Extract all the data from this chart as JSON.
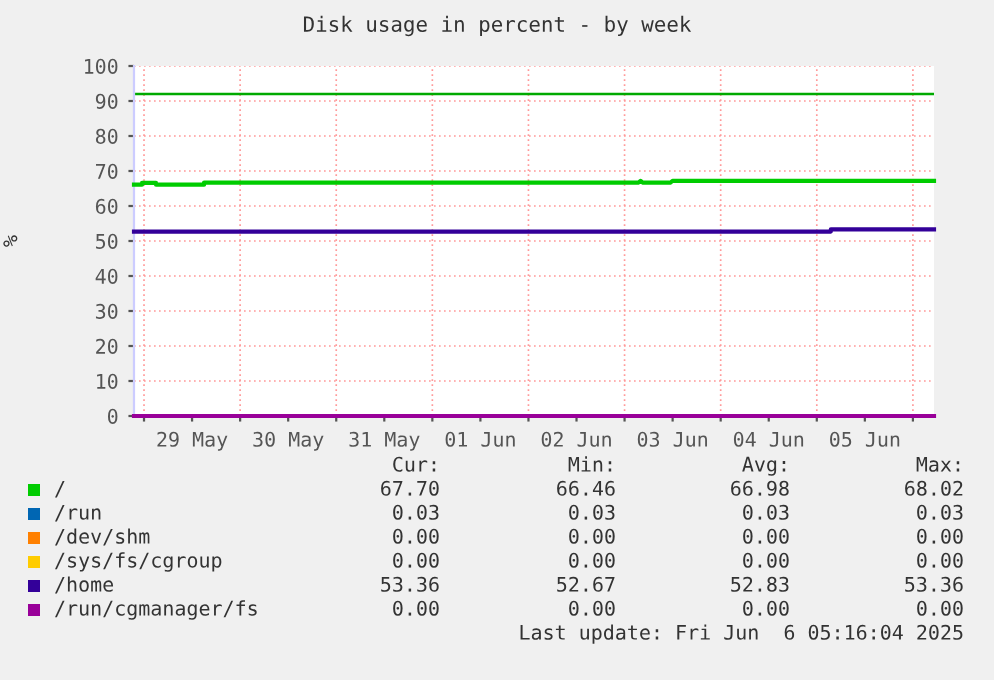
{
  "chart_data": {
    "type": "line",
    "title": "Disk usage in percent - by week",
    "ylabel": "%",
    "xlim": [
      "2025-05-28T21:30",
      "2025-06-06T05:16"
    ],
    "xticks": [
      {
        "value": "2025-05-29T00:00",
        "label": null
      },
      {
        "value": "2025-05-29T12:00",
        "label": "29 May"
      },
      {
        "value": "2025-05-30T00:00",
        "label": null
      },
      {
        "value": "2025-05-30T12:00",
        "label": "30 May"
      },
      {
        "value": "2025-05-31T00:00",
        "label": null
      },
      {
        "value": "2025-05-31T12:00",
        "label": "31 May"
      },
      {
        "value": "2025-06-01T00:00",
        "label": null
      },
      {
        "value": "2025-06-01T12:00",
        "label": "01 Jun"
      },
      {
        "value": "2025-06-02T00:00",
        "label": null
      },
      {
        "value": "2025-06-02T12:00",
        "label": "02 Jun"
      },
      {
        "value": "2025-06-03T00:00",
        "label": null
      },
      {
        "value": "2025-06-03T12:00",
        "label": "03 Jun"
      },
      {
        "value": "2025-06-04T00:00",
        "label": null
      },
      {
        "value": "2025-06-04T12:00",
        "label": "04 Jun"
      },
      {
        "value": "2025-06-05T00:00",
        "label": null
      },
      {
        "value": "2025-06-05T12:00",
        "label": "05 Jun"
      },
      {
        "value": "2025-06-06T00:00",
        "label": null
      }
    ],
    "ylim": [
      0,
      100
    ],
    "yticks": [
      0,
      10,
      20,
      30,
      40,
      50,
      60,
      70,
      80,
      90,
      100
    ],
    "grid": true,
    "legend": "bottom",
    "series": [
      {
        "name": "/",
        "color": "#00cc00",
        "x": [
          "2025-05-28T21:30",
          "2025-05-28T23:30",
          "2025-05-28T23:30",
          "2025-05-29T03:00",
          "2025-05-29T03:00",
          "2025-05-29T15:00",
          "2025-05-29T15:00",
          "2025-06-03T03:30",
          "2025-06-03T04:00",
          "2025-06-03T04:30",
          "2025-06-03T11:30",
          "2025-06-03T12:00",
          "2025-06-03T12:30",
          "2025-06-06T05:16"
        ],
        "values": [
          66.1,
          66.1,
          66.6,
          66.6,
          66.1,
          66.1,
          66.7,
          66.7,
          67.2,
          66.7,
          66.7,
          67.2,
          67.2,
          67.2
        ]
      },
      {
        "name": "/run",
        "color": "#0066b3"
      },
      {
        "name": "/dev/shm",
        "color": "#ff8000"
      },
      {
        "name": "/sys/fs/cgroup",
        "color": "#ffcc00"
      },
      {
        "name": "/home",
        "color": "#330099",
        "x": [
          "2025-05-28T21:30",
          "2025-06-05T03:30",
          "2025-06-05T03:30",
          "2025-06-06T05:16"
        ],
        "values": [
          52.7,
          52.7,
          53.3,
          53.3
        ]
      },
      {
        "name": "/run/cgmanager/fs",
        "color": "#990099",
        "x": [
          "2025-05-28T21:30",
          "2025-06-06T05:16"
        ],
        "values": [
          0,
          0
        ]
      }
    ],
    "ref_lines": [
      {
        "axis": "y",
        "value": 92,
        "color": "#00aa00"
      }
    ],
    "annotations": [
      "Cur:",
      "Min:",
      "Avg:",
      "Max:",
      "67.70",
      "66.46",
      "66.98",
      "68.02",
      "0.03",
      "0.03",
      "0.03",
      "0.03",
      "0.00",
      "0.00",
      "0.00",
      "0.00",
      "0.00",
      "0.00",
      "0.00",
      "0.00",
      "53.36",
      "52.67",
      "52.83",
      "53.36",
      "0.00",
      "0.00",
      "0.00",
      "0.00",
      "Last update: Fri Jun  6 05:16:04 2025"
    ]
  }
}
